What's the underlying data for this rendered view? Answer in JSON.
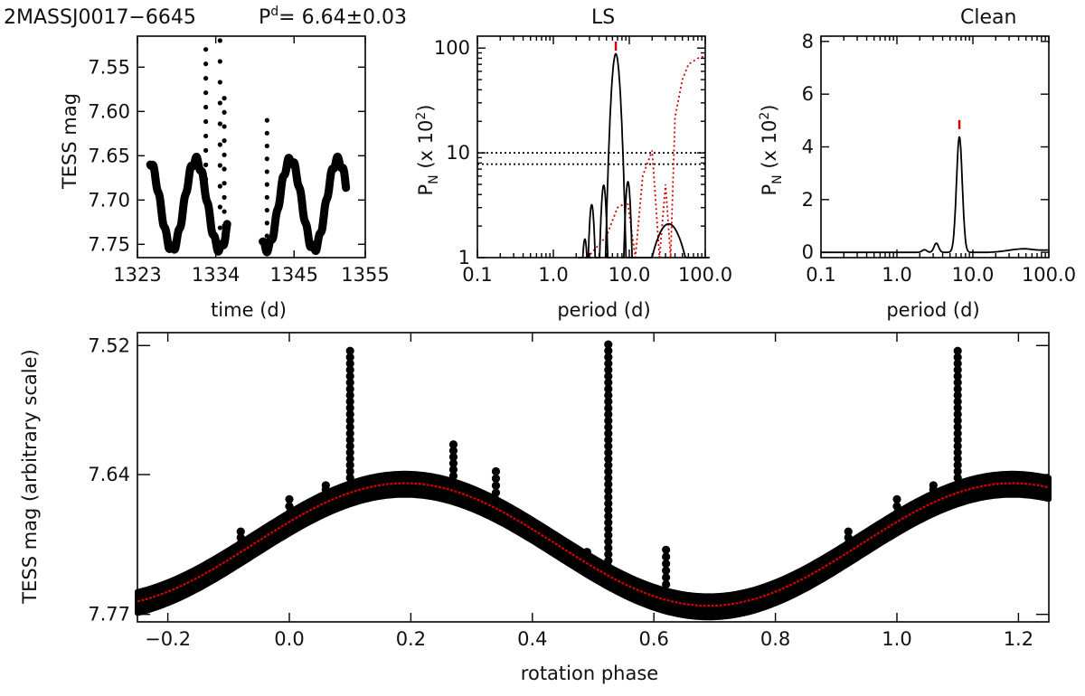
{
  "header": {
    "star": "2MASSJ0017−6645",
    "period_symbol": "P",
    "period_sup": "d",
    "period_value": "=  6.64±0.03",
    "ls_title": "LS",
    "clean_title": "Clean"
  },
  "colors": {
    "ink": "#000000",
    "model": "#d40000",
    "marker": "#d40000"
  },
  "chart_data": [
    {
      "id": "lightcurve",
      "type": "scatter",
      "xlabel": "time (d)",
      "ylabel": "TESS mag",
      "xlim": [
        1323,
        1355
      ],
      "ylim": [
        7.765,
        7.515
      ],
      "y_inverted": true,
      "xticks": [
        "1323",
        "1334",
        "1345",
        "1355"
      ],
      "xtick_values": [
        1323,
        1334,
        1345,
        1355
      ],
      "yticks": [
        "7.55",
        "7.60",
        "7.65",
        "7.70",
        "7.75"
      ],
      "ytick_values": [
        7.55,
        7.6,
        7.65,
        7.7,
        7.75
      ],
      "period_d": 6.64,
      "mean_mag": 7.705,
      "amplitude_mag": 0.05,
      "segments": [
        [
          1324.8,
          1335.6
        ],
        [
          1340.6,
          1352.3
        ]
      ],
      "flares": [
        {
          "t": 1332.6,
          "peak": 7.53
        },
        {
          "t": 1334.6,
          "peak": 7.52
        },
        {
          "t": 1335.2,
          "peak": 7.585
        },
        {
          "t": 1341.2,
          "peak": 7.61
        }
      ]
    },
    {
      "id": "ls",
      "type": "line",
      "title": "LS",
      "xlabel": "period (d)",
      "ylabel": "P",
      "ylabel_sub": "N",
      "ylabel_tail": " (x 10",
      "ylabel_sup": "2",
      "ylabel_end": ")",
      "xscale": "log",
      "yscale": "log",
      "xlim": [
        0.1,
        100
      ],
      "ylim": [
        1,
        130
      ],
      "xticks": [
        "0.1",
        "1.0",
        "10.0",
        "100.0"
      ],
      "xtick_values": [
        0.1,
        1,
        10,
        100
      ],
      "yticks": [
        "1",
        "10",
        "100"
      ],
      "ytick_values": [
        1,
        10,
        100
      ],
      "significance_levels": [
        10,
        7.8
      ],
      "peak_period": 6.64,
      "series": [
        {
          "name": "periodogram",
          "style": "solid",
          "color": "#000000",
          "peaks": [
            [
              2.6,
              1.5
            ],
            [
              3.2,
              3.2
            ],
            [
              4.6,
              4.9
            ],
            [
              6.64,
              88
            ],
            [
              9.6,
              5.3
            ],
            [
              33,
              2.1
            ]
          ]
        },
        {
          "name": "spectral window",
          "style": "dotted",
          "color": "#d40000",
          "points": [
            [
              2.8,
              1
            ],
            [
              5.0,
              1.6
            ],
            [
              7.0,
              3.0
            ],
            [
              9.5,
              3.4
            ],
            [
              12,
              1
            ],
            [
              15,
              6
            ],
            [
              20,
              10.5
            ],
            [
              25,
              1
            ],
            [
              30,
              5
            ],
            [
              35,
              1
            ],
            [
              40,
              22
            ],
            [
              50,
              50
            ],
            [
              60,
              70
            ],
            [
              80,
              80
            ],
            [
              100,
              84
            ]
          ]
        }
      ]
    },
    {
      "id": "clean",
      "type": "line",
      "title": "Clean",
      "xlabel": "period (d)",
      "ylabel": "P",
      "ylabel_sub": "N",
      "ylabel_tail": " (x 10",
      "ylabel_sup": "2",
      "ylabel_end": ")",
      "xscale": "log",
      "xlim": [
        0.1,
        100
      ],
      "ylim": [
        -0.2,
        8.2
      ],
      "xticks": [
        "0.1",
        "1.0",
        "10.0",
        "100.0"
      ],
      "xtick_values": [
        0.1,
        1,
        10,
        100
      ],
      "yticks": [
        "0",
        "2",
        "4",
        "6",
        "8"
      ],
      "ytick_values": [
        0,
        2,
        4,
        6,
        8
      ],
      "peak_period": 6.64,
      "peak_power": 4.4,
      "minor_peaks": [
        [
          2.3,
          0.1
        ],
        [
          3.3,
          0.35
        ]
      ]
    },
    {
      "id": "phase",
      "type": "scatter",
      "xlabel": "rotation phase",
      "ylabel": "TESS mag (arbitrary scale)",
      "xlim": [
        -0.25,
        1.25
      ],
      "ylim": [
        7.777,
        7.508
      ],
      "y_inverted": true,
      "xticks": [
        "−0.2",
        "0.0",
        "0.2",
        "0.4",
        "0.6",
        "0.8",
        "1.0",
        "1.2"
      ],
      "xtick_values": [
        -0.2,
        0.0,
        0.2,
        0.4,
        0.6,
        0.8,
        1.0,
        1.2
      ],
      "yticks": [
        "7.52",
        "7.64",
        "7.77"
      ],
      "ytick_values": [
        7.52,
        7.64,
        7.77
      ],
      "model": {
        "mean": 7.705,
        "amplitude": 0.057,
        "max_phase": 0.19
      },
      "flares": [
        {
          "phase": -0.08,
          "peak": 7.693
        },
        {
          "phase": 0.0,
          "peak": 7.663
        },
        {
          "phase": 0.06,
          "peak": 7.65
        },
        {
          "phase": 0.1,
          "peak": 7.525
        },
        {
          "phase": 0.27,
          "peak": 7.612
        },
        {
          "phase": 0.34,
          "peak": 7.637
        },
        {
          "phase": 0.49,
          "peak": 7.712
        },
        {
          "phase": 0.525,
          "peak": 7.519
        },
        {
          "phase": 0.62,
          "peak": 7.71
        },
        {
          "phase": 0.92,
          "peak": 7.693
        },
        {
          "phase": 1.0,
          "peak": 7.663
        },
        {
          "phase": 1.06,
          "peak": 7.65
        },
        {
          "phase": 1.1,
          "peak": 7.525
        }
      ]
    }
  ]
}
